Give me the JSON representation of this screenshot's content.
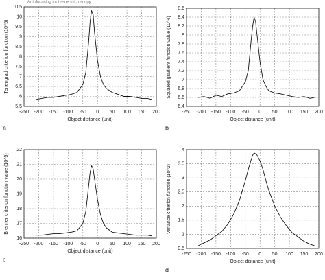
{
  "header": "Autofocusing for tissue microscopy",
  "chart_data": [
    {
      "type": "line",
      "label": "a",
      "xlabel": "Object distance (unit)",
      "ylabel": "Tenengrad criterion function (10^5)",
      "x": [
        -210,
        -190,
        -170,
        -150,
        -130,
        -110,
        -90,
        -70,
        -50,
        -40,
        -30,
        -25,
        -20,
        -15,
        -10,
        0,
        10,
        20,
        30,
        50,
        70,
        90,
        110,
        130,
        150,
        170,
        185
      ],
      "values": [
        5.85,
        5.9,
        5.95,
        5.95,
        6.0,
        6.05,
        6.1,
        6.2,
        6.6,
        7.2,
        8.8,
        9.8,
        10.3,
        10.1,
        9.2,
        7.8,
        7.0,
        6.6,
        6.4,
        6.2,
        6.1,
        6.0,
        6.0,
        5.95,
        5.9,
        5.9,
        5.85
      ],
      "color": "#111111",
      "xlim": [
        -250,
        200
      ],
      "xticks": [
        -250,
        -200,
        -150,
        -100,
        -50,
        0,
        50,
        100,
        150,
        200
      ],
      "ylim": [
        5.5,
        10.5
      ],
      "yticks": [
        5.5,
        6,
        6.5,
        7,
        7.5,
        8,
        8.5,
        9,
        9.5,
        10,
        10.5
      ],
      "grid": true
    },
    {
      "type": "line",
      "label": "b",
      "xlabel": "Object distance (unit)",
      "ylabel": "Squared gradient function value (10^4)",
      "x": [
        -210,
        -190,
        -170,
        -150,
        -130,
        -110,
        -90,
        -70,
        -50,
        -40,
        -30,
        -25,
        -20,
        -15,
        -10,
        0,
        10,
        20,
        30,
        50,
        70,
        90,
        110,
        130,
        150,
        170,
        185
      ],
      "values": [
        6.6,
        6.62,
        6.58,
        6.65,
        6.62,
        6.68,
        6.7,
        6.75,
        6.95,
        7.2,
        7.9,
        8.2,
        8.4,
        8.3,
        8.0,
        7.4,
        7.0,
        6.85,
        6.75,
        6.7,
        6.68,
        6.65,
        6.62,
        6.6,
        6.62,
        6.58,
        6.6
      ],
      "color": "#111111",
      "xlim": [
        -250,
        200
      ],
      "xticks": [
        -250,
        -200,
        -150,
        -100,
        -50,
        0,
        50,
        100,
        150,
        200
      ],
      "ylim": [
        6.4,
        8.6
      ],
      "yticks": [
        6.4,
        6.6,
        6.8,
        7,
        7.2,
        7.4,
        7.6,
        7.8,
        8,
        8.2,
        8.4,
        8.6
      ],
      "grid": true
    },
    {
      "type": "line",
      "label": "c",
      "xlabel": "Object distance (unit)",
      "ylabel": "Brenner criterion function value (10^5)",
      "x": [
        -210,
        -190,
        -170,
        -150,
        -130,
        -110,
        -90,
        -70,
        -50,
        -40,
        -30,
        -25,
        -20,
        -15,
        -10,
        0,
        10,
        20,
        30,
        50,
        70,
        90,
        110,
        130,
        150,
        170,
        185
      ],
      "values": [
        16.2,
        16.2,
        16.25,
        16.3,
        16.3,
        16.35,
        16.4,
        16.5,
        17.0,
        17.8,
        19.6,
        20.5,
        20.9,
        20.7,
        20.0,
        18.6,
        17.6,
        17.0,
        16.7,
        16.4,
        16.35,
        16.3,
        16.25,
        16.2,
        16.2,
        16.2,
        16.15
      ],
      "color": "#111111",
      "xlim": [
        -250,
        200
      ],
      "xticks": [
        -250,
        -200,
        -150,
        -100,
        -50,
        0,
        50,
        100,
        150,
        200
      ],
      "ylim": [
        16,
        22
      ],
      "yticks": [
        16,
        17,
        18,
        19,
        20,
        21,
        22
      ],
      "grid": true
    },
    {
      "type": "line",
      "label": "d",
      "xlabel": "Object distance (unit)",
      "ylabel": "Variance criterion function (10^2)",
      "x": [
        -210,
        -190,
        -170,
        -150,
        -130,
        -110,
        -90,
        -70,
        -50,
        -40,
        -30,
        -25,
        -20,
        -15,
        -10,
        0,
        10,
        20,
        30,
        50,
        70,
        90,
        110,
        130,
        150,
        170,
        185
      ],
      "values": [
        0.6,
        0.7,
        0.8,
        0.95,
        1.1,
        1.35,
        1.7,
        2.2,
        2.9,
        3.3,
        3.65,
        3.8,
        3.88,
        3.85,
        3.8,
        3.6,
        3.3,
        2.9,
        2.55,
        2.0,
        1.6,
        1.3,
        1.05,
        0.9,
        0.75,
        0.65,
        0.6
      ],
      "color": "#111111",
      "xlim": [
        -250,
        200
      ],
      "xticks": [
        -250,
        -200,
        -150,
        -100,
        -50,
        0,
        50,
        100,
        150,
        200
      ],
      "ylim": [
        0.5,
        4
      ],
      "yticks": [
        0.5,
        1,
        1.5,
        2,
        2.5,
        3,
        3.5,
        4
      ],
      "grid": true
    }
  ]
}
